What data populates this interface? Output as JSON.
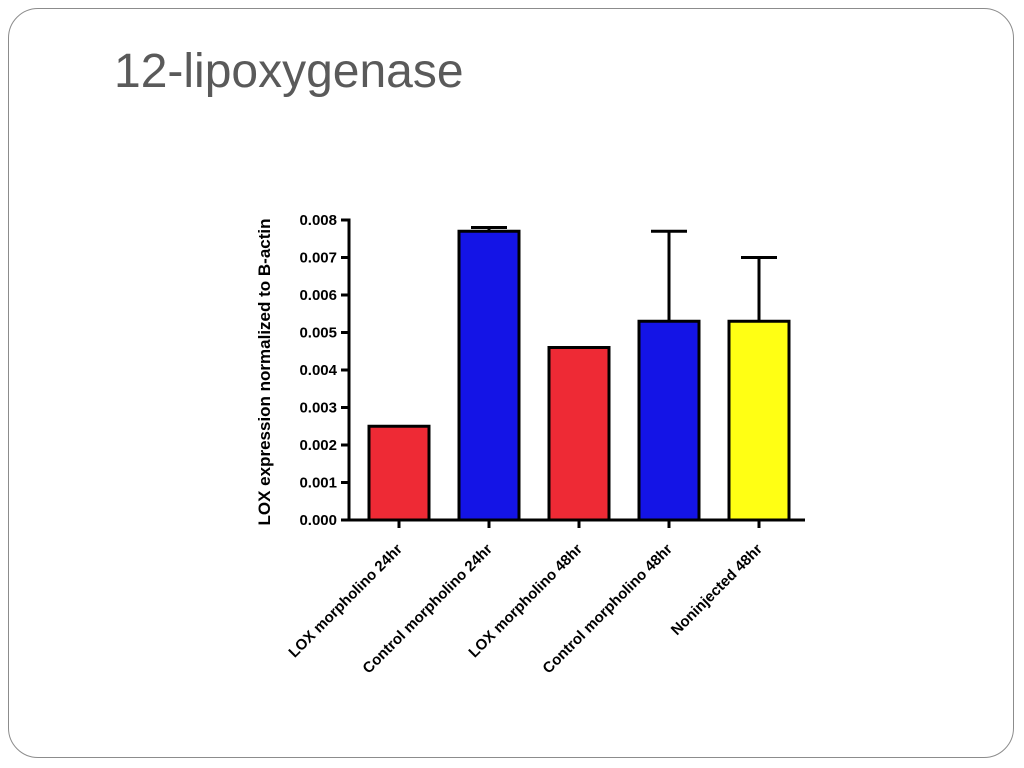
{
  "slide": {
    "title": "12-lipoxygenase"
  },
  "chart_data": {
    "type": "bar",
    "title": "",
    "xlabel": "",
    "ylabel": "LOX expression normalized to B-actin",
    "ylim": [
      0,
      0.008
    ],
    "yticks": [
      "0.000",
      "0.001",
      "0.002",
      "0.003",
      "0.004",
      "0.005",
      "0.006",
      "0.007",
      "0.008"
    ],
    "categories": [
      "LOX morpholino 24hr",
      "Control morpholino 24hr",
      "LOX morpholino 48hr",
      "Control morpholino 48hr",
      "Noninjected 48hr"
    ],
    "values": [
      0.0025,
      0.0077,
      0.0046,
      0.0053,
      0.0053
    ],
    "error_upper": [
      0.0,
      0.0001,
      0.0,
      0.0024,
      0.0017
    ],
    "bar_colors": [
      "#ee2a35",
      "#1414e6",
      "#ee2a35",
      "#1414e6",
      "#ffff14"
    ],
    "grid": false,
    "legend": "none"
  }
}
